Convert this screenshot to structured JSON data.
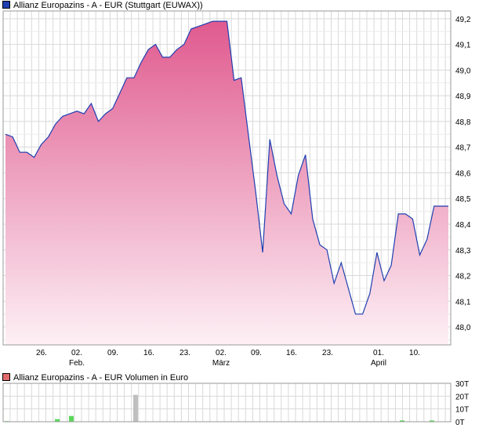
{
  "colors": {
    "line": "#1f3fb0",
    "fill_top": "#e05a8f",
    "fill_bottom": "#fdf0f5",
    "grid": "#d9d9d9",
    "legend_price": "#1f3fb0",
    "legend_volume": "#e06a6a",
    "volume_up": "#5ad85a",
    "volume_neutral": "#bfbfbf"
  },
  "price_legend": "Allianz Europazins - A - EUR (Stuttgart (EUWAX))",
  "volume_legend": "Allianz Europazins - A - EUR Volumen in Euro",
  "chart_data": [
    {
      "type": "area",
      "series": [
        {
          "name": "Allianz Europazins - A - EUR (Stuttgart (EUWAX))",
          "values": [
            48.75,
            48.74,
            48.68,
            48.68,
            48.66,
            48.71,
            48.74,
            48.79,
            48.82,
            48.83,
            48.84,
            48.83,
            48.87,
            48.8,
            48.83,
            48.85,
            48.91,
            48.97,
            48.97,
            49.03,
            49.08,
            49.1,
            49.05,
            49.05,
            49.08,
            49.1,
            49.16,
            49.17,
            49.18,
            49.19,
            49.19,
            49.19,
            48.96,
            48.97,
            48.75,
            48.53,
            48.29,
            48.73,
            48.59,
            48.48,
            48.44,
            48.59,
            48.67,
            48.42,
            48.32,
            48.3,
            48.17,
            48.25,
            48.15,
            48.05,
            48.05,
            48.13,
            48.29,
            48.18,
            48.24,
            48.44,
            48.44,
            48.42,
            48.28,
            48.34,
            48.47,
            48.47,
            48.47
          ]
        }
      ],
      "y_ticks": [
        "49,2",
        "49,1",
        "49,0",
        "48,9",
        "48,8",
        "48,7",
        "48,6",
        "48,5",
        "48,4",
        "48,3",
        "48,2",
        "48,1",
        "48,0"
      ],
      "ylim": [
        47.93,
        49.23
      ],
      "x_ticks": [
        {
          "day": "26.",
          "month": ""
        },
        {
          "day": "02.",
          "month": "Feb."
        },
        {
          "day": "09.",
          "month": ""
        },
        {
          "day": "16.",
          "month": ""
        },
        {
          "day": "23.",
          "month": ""
        },
        {
          "day": "02.",
          "month": "März"
        },
        {
          "day": "09.",
          "month": ""
        },
        {
          "day": "16.",
          "month": ""
        },
        {
          "day": "23.",
          "month": ""
        },
        {
          "day": "01.",
          "month": "April"
        },
        {
          "day": "10.",
          "month": ""
        }
      ],
      "grid": true
    },
    {
      "type": "bar",
      "series": [
        {
          "name": "Allianz Europazins - A - EUR Volumen in Euro",
          "bars": [
            {
              "value": 0.5,
              "color": "up"
            },
            {
              "value": 2.0,
              "color": "up"
            },
            {
              "value": 4.5,
              "color": "up"
            },
            {
              "value": 21.0,
              "color": "neutral"
            },
            {
              "value": 1.0,
              "color": "up"
            },
            {
              "value": 1.0,
              "color": "up"
            }
          ]
        }
      ],
      "y_ticks": [
        "30T",
        "20T",
        "10T",
        "0T"
      ],
      "ylim": [
        0,
        30
      ],
      "grid": true
    }
  ]
}
